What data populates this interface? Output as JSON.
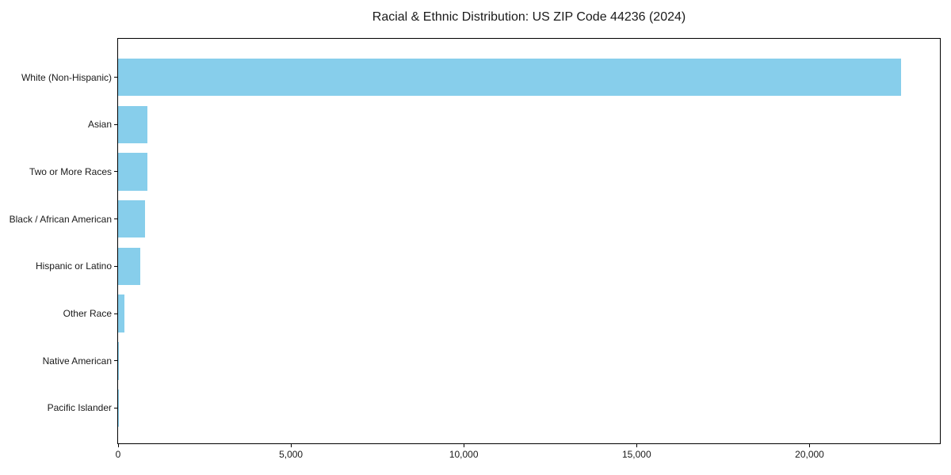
{
  "chart_data": {
    "type": "bar",
    "orientation": "horizontal",
    "title": "Racial & Ethnic Distribution: US ZIP Code 44236 (2024)",
    "categories": [
      "White (Non-Hispanic)",
      "Asian",
      "Two or More Races",
      "Black / African American",
      "Hispanic or Latino",
      "Other Race",
      "Native American",
      "Pacific Islander"
    ],
    "values": [
      22640,
      850,
      850,
      790,
      650,
      180,
      15,
      5
    ],
    "xlabel": "",
    "ylabel": "",
    "xlim": [
      0,
      23772
    ],
    "xticks": [
      0,
      5000,
      10000,
      15000,
      20000
    ],
    "xtick_labels": [
      "0",
      "5,000",
      "10,000",
      "15,000",
      "20,000"
    ],
    "bar_color": "#87CEEB",
    "spine_color": "#000000",
    "background_color": "#ffffff",
    "grid": false,
    "legend": null
  }
}
